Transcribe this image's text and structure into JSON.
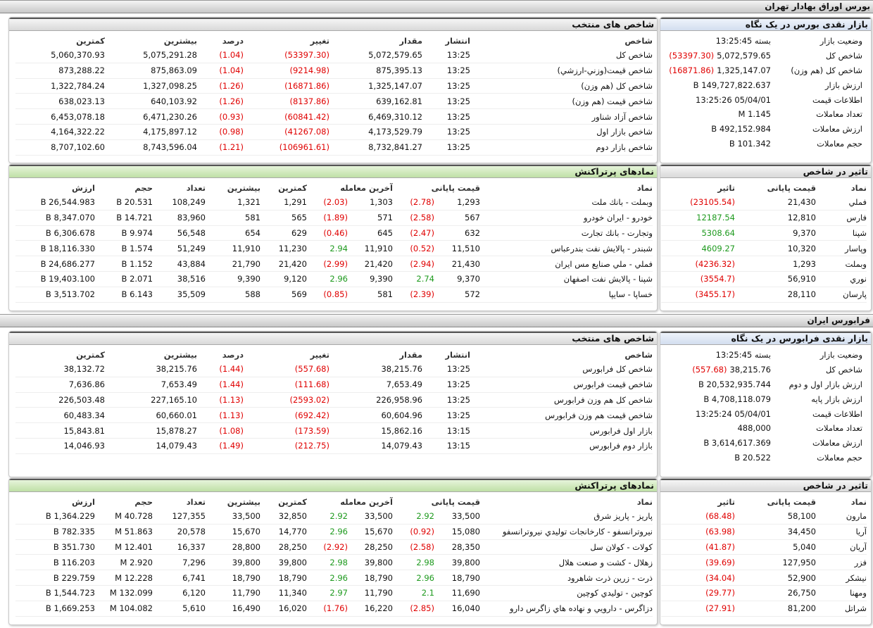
{
  "sections": [
    {
      "title": "بورس اوراق بهادار تهران",
      "overview": {
        "title": "بازار نقدی بورس در یک نگاه",
        "rows": [
          [
            "وضعیت بازار",
            "بسته 13:25:45"
          ],
          [
            "شاخص کل",
            "5,072,579.65",
            "(53397.30)"
          ],
          [
            "شاخص کل (هم وزن)",
            "1,325,147.07",
            "(16871.86)"
          ],
          [
            "ارزش بازار",
            "149,727,822.637 B"
          ],
          [
            "اطلاعات قیمت",
            "05/04/01 13:25:26"
          ],
          [
            "تعداد معاملات",
            "1.145 M"
          ],
          [
            "ارزش معاملات",
            "492,152.984 B"
          ],
          [
            "حجم معاملات",
            "101.342 B"
          ]
        ]
      },
      "indices": {
        "title": "شاخص های منتخب",
        "columns": [
          "شاخص",
          "انتشار",
          "مقدار",
          "تغییر",
          "درصد",
          "بیشترین",
          "کمترین"
        ],
        "rows": [
          [
            "شاخص کل",
            "13:25",
            "5,072,579.65",
            "(53397.30)",
            "(1.04)",
            "5,075,291.28",
            "5,060,370.93"
          ],
          [
            "شاخص قیمت(وزني-ارزشي)",
            "13:25",
            "875,395.13",
            "(9214.98)",
            "(1.04)",
            "875,863.09",
            "873,288.22"
          ],
          [
            "شاخص کل (هم وزن)",
            "13:25",
            "1,325,147.07",
            "(16871.86)",
            "(1.26)",
            "1,327,098.25",
            "1,322,784.24"
          ],
          [
            "شاخص قیمت (هم وزن)",
            "13:25",
            "639,162.81",
            "(8137.86)",
            "(1.26)",
            "640,103.92",
            "638,023.13"
          ],
          [
            "شاخص آزاد شناور",
            "13:25",
            "6,469,310.12",
            "(60841.42)",
            "(0.93)",
            "6,471,230.26",
            "6,453,078.18"
          ],
          [
            "شاخص بازار اول",
            "13:25",
            "4,173,529.79",
            "(41267.08)",
            "(0.98)",
            "4,175,897.12",
            "4,164,322.22"
          ],
          [
            "شاخص بازار دوم",
            "13:25",
            "8,732,841.27",
            "(106961.61)",
            "(1.21)",
            "8,743,596.04",
            "8,707,102.60"
          ]
        ]
      },
      "impact": {
        "title": "تاثیر در شاخص",
        "columns": [
          "نماد",
          "قیمت پایانی",
          "تاثیر"
        ],
        "rows": [
          [
            "فملي",
            "21,430",
            "(23105.54)"
          ],
          [
            "فارس",
            "12,810",
            "12187.54"
          ],
          [
            "شپنا",
            "9,370",
            "5308.64"
          ],
          [
            "وپاسار",
            "10,320",
            "4609.27"
          ],
          [
            "وبملت",
            "1,293",
            "(4236.32)"
          ],
          [
            "نوري",
            "56,910",
            "(3554.7)"
          ],
          [
            "پارسان",
            "28,110",
            "(3455.17)"
          ]
        ]
      },
      "trades": {
        "title": "نمادهای پرتراکنش",
        "columns": [
          "نماد",
          "قیمت پایانی",
          "آخرین معامله",
          "کمترین",
          "بیشترین",
          "تعداد",
          "حجم",
          "ارزش"
        ],
        "rows": [
          [
            "وبملت - بانك ملت",
            "1,293",
            "(2.78)",
            "1,303",
            "(2.03)",
            "1,291",
            "1,321",
            "108,249",
            "20.531 B",
            "26,544.983 B"
          ],
          [
            "خودرو - ايران خودرو",
            "567",
            "(2.58)",
            "571",
            "(1.89)",
            "565",
            "581",
            "83,960",
            "14.721 B",
            "8,347.070 B"
          ],
          [
            "وتجارت - بانك تجارت",
            "632",
            "(2.47)",
            "645",
            "(0.46)",
            "629",
            "654",
            "56,548",
            "9.974 B",
            "6,306.678 B"
          ],
          [
            "شبندر - پالايش نفت بندرعباس",
            "11,510",
            "(0.52)",
            "11,910",
            "2.94",
            "11,230",
            "11,910",
            "51,249",
            "1.574 B",
            "18,116.330 B"
          ],
          [
            "فملي - ملي صنايع مس ايران",
            "21,430",
            "(2.94)",
            "21,420",
            "(2.99)",
            "21,420",
            "21,790",
            "43,884",
            "1.152 B",
            "24,686.277 B"
          ],
          [
            "شپنا - پالايش نفت اصفهان",
            "9,370",
            "2.74",
            "9,390",
            "2.96",
            "9,120",
            "9,390",
            "38,516",
            "2.071 B",
            "19,403.100 B"
          ],
          [
            "خساپا - سايپا",
            "572",
            "(2.39)",
            "581",
            "(0.85)",
            "569",
            "588",
            "35,509",
            "6.143 B",
            "3,513.702 B"
          ]
        ]
      }
    },
    {
      "title": "فرابورس ایران",
      "overview": {
        "title": "بازار نقدی فرابورس در یک نگاه",
        "rows": [
          [
            "وضعیت بازار",
            "بسته 13:25:45"
          ],
          [
            "شاخص کل",
            "38,215.76",
            "(557.68)"
          ],
          [
            "ارزش بازار اول و دوم",
            "20,532,935.744 B"
          ],
          [
            "ارزش بازار پایه",
            "4,708,118.079 B"
          ],
          [
            "اطلاعات قیمت",
            "05/04/01 13:25:24"
          ],
          [
            "تعداد معاملات",
            "488,000"
          ],
          [
            "ارزش معاملات",
            "3,614,617.369 B"
          ],
          [
            "حجم معاملات",
            "20.522 B"
          ]
        ]
      },
      "indices": {
        "title": "شاخص های منتخب",
        "columns": [
          "شاخص",
          "انتشار",
          "مقدار",
          "تغییر",
          "درصد",
          "بیشترین",
          "کمترین"
        ],
        "rows": [
          [
            "شاخص کل فرابورس",
            "13:25",
            "38,215.76",
            "(557.68)",
            "(1.44)",
            "38,215.76",
            "38,132.72"
          ],
          [
            "شاخص قیمت فرابورس",
            "13:25",
            "7,653.49",
            "(111.68)",
            "(1.44)",
            "7,653.49",
            "7,636.86"
          ],
          [
            "شاخص کل هم وزن فرابورس",
            "13:25",
            "226,958.96",
            "(2593.02)",
            "(1.13)",
            "227,165.10",
            "226,503.48"
          ],
          [
            "شاخص قیمت هم وزن فرابورس",
            "13:25",
            "60,604.96",
            "(692.42)",
            "(1.13)",
            "60,660.01",
            "60,483.34"
          ],
          [
            "بازار اول فرابورس",
            "13:15",
            "15,862.16",
            "(173.59)",
            "(1.08)",
            "15,878.27",
            "15,843.81"
          ],
          [
            "بازار دوم فرابورس",
            "13:15",
            "14,079.43",
            "(212.75)",
            "(1.49)",
            "14,079.43",
            "14,046.93"
          ]
        ]
      },
      "impact": {
        "title": "تاثیر در شاخص",
        "columns": [
          "نماد",
          "قیمت پایانی",
          "تاثیر"
        ],
        "rows": [
          [
            "مارون",
            "58,100",
            "(68.48)"
          ],
          [
            "آريا",
            "34,450",
            "(63.98)"
          ],
          [
            "آريان",
            "5,040",
            "(41.87)"
          ],
          [
            "فزر",
            "127,950",
            "(39.69)"
          ],
          [
            "نيشكر",
            "52,900",
            "(34.04)"
          ],
          [
            "ومهنا",
            "26,750",
            "(29.77)"
          ],
          [
            "شراتل",
            "81,200",
            "(27.91)"
          ]
        ]
      },
      "trades": {
        "title": "نمادهای پرتراکنش",
        "columns": [
          "نماد",
          "قیمت پایانی",
          "آخرین معامله",
          "کمترین",
          "بیشترین",
          "تعداد",
          "حجم",
          "ارزش"
        ],
        "rows": [
          [
            "پاريز - پاريز شرق",
            "33,500",
            "2.92",
            "33,500",
            "2.92",
            "32,850",
            "33,500",
            "127,355",
            "40.728 M",
            "1,364.229 B"
          ],
          [
            "نيروترانسفو - كارخانجات توليدي نيروترانسفو",
            "15,080",
            "(0.92)",
            "15,670",
            "2.96",
            "14,770",
            "15,670",
            "20,578",
            "51.863 M",
            "782.335 B"
          ],
          [
            "كولات - كولان سل",
            "28,350",
            "(2.58)",
            "28,250",
            "(2.92)",
            "28,250",
            "28,800",
            "16,337",
            "12.401 M",
            "351.730 B"
          ],
          [
            "زهلال - كشت و صنعت هلال",
            "39,800",
            "2.98",
            "39,800",
            "2.98",
            "39,800",
            "39,800",
            "7,296",
            "2.920 M",
            "116.203 B"
          ],
          [
            "ذرت - زرين ذرت شاهرود",
            "18,790",
            "2.96",
            "18,790",
            "2.96",
            "18,790",
            "18,790",
            "6,741",
            "12.228 M",
            "229.759 B"
          ],
          [
            "كوچين - توليدي كوچين",
            "11,690",
            "2.1",
            "11,790",
            "2.97",
            "11,340",
            "11,790",
            "6,120",
            "132.099 M",
            "1,544.723 B"
          ],
          [
            "دزاگرس - دارويي و نهاده هاي زاگرس دارو",
            "16,040",
            "(2.85)",
            "16,220",
            "(1.76)",
            "16,020",
            "16,490",
            "5,610",
            "104.082 M",
            "1,669.253 B"
          ]
        ]
      }
    }
  ]
}
